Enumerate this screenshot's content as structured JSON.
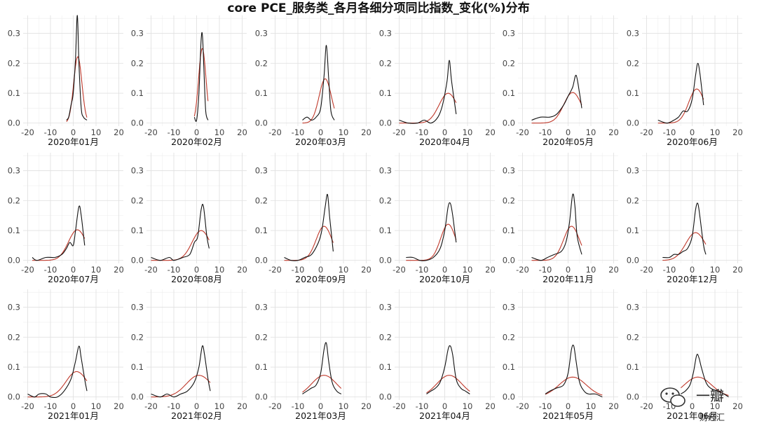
{
  "title": "core PCE_服务类_各月各细分项同比指数_变化(%)分布",
  "watermark": {
    "text": "一瓣",
    "subtext": "财经汇"
  },
  "chart_data": {
    "type": "line",
    "title": "core PCE_服务类_各月各细分项同比指数_变化(%)分布",
    "xlim": [
      -22,
      22
    ],
    "ylim": [
      -0.01,
      0.36
    ],
    "x_ticks": [
      -20,
      -10,
      0,
      10,
      20
    ],
    "y_ticks": [
      0.0,
      0.1,
      0.2,
      0.3
    ],
    "y_tick_labels": [
      "0.0",
      "0.1",
      "0.2",
      "0.3"
    ],
    "grid": true,
    "series_colors": {
      "density": "#111111",
      "normal": "#c0392b"
    },
    "panels": [
      {
        "label": "2020年01月",
        "black": [
          [
            -3,
            0.01
          ],
          [
            -2,
            0.02
          ],
          [
            -1,
            0.06
          ],
          [
            0,
            0.1
          ],
          [
            1,
            0.22
          ],
          [
            1.8,
            0.36
          ],
          [
            2.5,
            0.2
          ],
          [
            3.5,
            0.05
          ],
          [
            4.5,
            0.02
          ],
          [
            6,
            0.01
          ]
        ],
        "red": {
          "mean": 2.0,
          "sd": 1.8
        }
      },
      {
        "label": "2020年02月",
        "black": [
          [
            -1,
            0.02
          ],
          [
            0,
            0.01
          ],
          [
            1,
            0.1
          ],
          [
            2,
            0.28
          ],
          [
            2.6,
            0.29
          ],
          [
            3.2,
            0.18
          ],
          [
            4,
            0.04
          ],
          [
            5,
            0.01
          ]
        ],
        "red": {
          "mean": 2.5,
          "sd": 1.6
        }
      },
      {
        "label": "2020年03月",
        "black": [
          [
            -8,
            0.01
          ],
          [
            -6,
            0.02
          ],
          [
            -4,
            0.01
          ],
          [
            -2,
            0.02
          ],
          [
            0,
            0.05
          ],
          [
            1.5,
            0.16
          ],
          [
            2.5,
            0.26
          ],
          [
            3.5,
            0.15
          ],
          [
            4.5,
            0.04
          ],
          [
            6,
            0.01
          ]
        ],
        "red": {
          "mean": 2.0,
          "sd": 2.7
        }
      },
      {
        "label": "2020年04月",
        "black": [
          [
            -20,
            0.01
          ],
          [
            -16,
            0.0
          ],
          [
            -12,
            0.0
          ],
          [
            -9,
            0.01
          ],
          [
            -6,
            0.0
          ],
          [
            -3,
            0.02
          ],
          [
            -1,
            0.06
          ],
          [
            1,
            0.14
          ],
          [
            2,
            0.21
          ],
          [
            3,
            0.14
          ],
          [
            5,
            0.03
          ]
        ],
        "red": {
          "mean": 1.5,
          "sd": 4.0
        }
      },
      {
        "label": "2020年05月",
        "black": [
          [
            -16,
            0.01
          ],
          [
            -12,
            0.02
          ],
          [
            -8,
            0.02
          ],
          [
            -5,
            0.03
          ],
          [
            -2,
            0.06
          ],
          [
            0,
            0.09
          ],
          [
            2,
            0.12
          ],
          [
            3.5,
            0.16
          ],
          [
            5,
            0.1
          ],
          [
            6,
            0.05
          ]
        ],
        "red": {
          "mean": 2.0,
          "sd": 3.9
        }
      },
      {
        "label": "2020年06月",
        "black": [
          [
            -15,
            0.01
          ],
          [
            -11,
            0.0
          ],
          [
            -8,
            0.01
          ],
          [
            -6,
            0.02
          ],
          [
            -4,
            0.04
          ],
          [
            -2,
            0.04
          ],
          [
            0,
            0.08
          ],
          [
            1.5,
            0.16
          ],
          [
            2.5,
            0.2
          ],
          [
            3.5,
            0.16
          ],
          [
            5,
            0.06
          ]
        ],
        "red": {
          "mean": 2.0,
          "sd": 3.5
        }
      },
      {
        "label": "2020年07月",
        "black": [
          [
            -18,
            0.01
          ],
          [
            -16,
            0.0
          ],
          [
            -12,
            0.01
          ],
          [
            -8,
            0.01
          ],
          [
            -5,
            0.02
          ],
          [
            -3,
            0.04
          ],
          [
            -1.5,
            0.06
          ],
          [
            0,
            0.05
          ],
          [
            1,
            0.1
          ],
          [
            2.5,
            0.18
          ],
          [
            3.5,
            0.15
          ],
          [
            5,
            0.05
          ]
        ],
        "red": {
          "mean": 1.8,
          "sd": 3.9
        }
      },
      {
        "label": "2020年08月",
        "black": [
          [
            -20,
            0.01
          ],
          [
            -16,
            0.0
          ],
          [
            -12,
            0.01
          ],
          [
            -10,
            0.0
          ],
          [
            -6,
            0.01
          ],
          [
            -3,
            0.02
          ],
          [
            -1,
            0.06
          ],
          [
            0.5,
            0.08
          ],
          [
            2,
            0.17
          ],
          [
            3,
            0.18
          ],
          [
            4.5,
            0.08
          ],
          [
            5.5,
            0.04
          ]
        ],
        "red": {
          "mean": 2.0,
          "sd": 4.0
        }
      },
      {
        "label": "2020年09月",
        "black": [
          [
            -16,
            0.01
          ],
          [
            -13,
            0.0
          ],
          [
            -10,
            0.0
          ],
          [
            -7,
            0.01
          ],
          [
            -4,
            0.02
          ],
          [
            -1,
            0.06
          ],
          [
            0.5,
            0.1
          ],
          [
            2,
            0.18
          ],
          [
            3,
            0.22
          ],
          [
            4,
            0.14
          ],
          [
            5.5,
            0.03
          ]
        ],
        "red": {
          "mean": 1.5,
          "sd": 3.5
        }
      },
      {
        "label": "2020年10月",
        "black": [
          [
            -17,
            0.01
          ],
          [
            -14,
            0.01
          ],
          [
            -11,
            0.0
          ],
          [
            -8,
            0.0
          ],
          [
            -5,
            0.01
          ],
          [
            -2,
            0.04
          ],
          [
            0,
            0.1
          ],
          [
            1.5,
            0.18
          ],
          [
            2.5,
            0.19
          ],
          [
            3.5,
            0.15
          ],
          [
            5,
            0.06
          ]
        ],
        "red": {
          "mean": 1.5,
          "sd": 3.3
        }
      },
      {
        "label": "2020年11月",
        "black": [
          [
            -16,
            0.01
          ],
          [
            -12,
            0.0
          ],
          [
            -9,
            0.01
          ],
          [
            -6,
            0.02
          ],
          [
            -3,
            0.03
          ],
          [
            -1,
            0.06
          ],
          [
            0.5,
            0.12
          ],
          [
            2,
            0.22
          ],
          [
            3,
            0.18
          ],
          [
            4,
            0.08
          ],
          [
            6,
            0.02
          ]
        ],
        "red": {
          "mean": 1.5,
          "sd": 3.5
        }
      },
      {
        "label": "2020年12月",
        "black": [
          [
            -13,
            0.01
          ],
          [
            -10,
            0.01
          ],
          [
            -8,
            0.02
          ],
          [
            -6,
            0.02
          ],
          [
            -4,
            0.03
          ],
          [
            -2,
            0.04
          ],
          [
            0,
            0.08
          ],
          [
            1.5,
            0.17
          ],
          [
            2.5,
            0.19
          ],
          [
            3.5,
            0.14
          ],
          [
            5,
            0.05
          ],
          [
            6,
            0.02
          ]
        ],
        "red": {
          "mean": 1.5,
          "sd": 4.3
        }
      },
      {
        "label": "2021年01月",
        "black": [
          [
            -20,
            0.01
          ],
          [
            -17,
            0.0
          ],
          [
            -15,
            0.01
          ],
          [
            -12,
            0.01
          ],
          [
            -10,
            0.0
          ],
          [
            -7,
            0.0
          ],
          [
            -4,
            0.02
          ],
          [
            -1,
            0.06
          ],
          [
            1,
            0.12
          ],
          [
            2.5,
            0.17
          ],
          [
            3.5,
            0.13
          ],
          [
            5,
            0.06
          ],
          [
            6,
            0.02
          ]
        ],
        "red": {
          "mean": 1.5,
          "sd": 4.7
        }
      },
      {
        "label": "2021年02月",
        "black": [
          [
            -20,
            0.01
          ],
          [
            -16,
            0.0
          ],
          [
            -13,
            0.01
          ],
          [
            -10,
            0.0
          ],
          [
            -7,
            0.01
          ],
          [
            -4,
            0.02
          ],
          [
            -1,
            0.05
          ],
          [
            1,
            0.1
          ],
          [
            2.5,
            0.17
          ],
          [
            3.5,
            0.14
          ],
          [
            5,
            0.06
          ],
          [
            6,
            0.02
          ]
        ],
        "red": {
          "mean": 1.0,
          "sd": 5.5
        }
      },
      {
        "label": "2021年03月",
        "black": [
          [
            -8,
            0.01
          ],
          [
            -6,
            0.02
          ],
          [
            -4,
            0.03
          ],
          [
            -2,
            0.04
          ],
          [
            0,
            0.08
          ],
          [
            1.5,
            0.16
          ],
          [
            2.5,
            0.18
          ],
          [
            3.5,
            0.12
          ],
          [
            5,
            0.05
          ],
          [
            7,
            0.02
          ],
          [
            9,
            0.01
          ]
        ],
        "red": {
          "mean": 1.5,
          "sd": 5.5
        }
      },
      {
        "label": "2021年04月",
        "black": [
          [
            -8,
            0.01
          ],
          [
            -6,
            0.02
          ],
          [
            -4,
            0.03
          ],
          [
            -2,
            0.05
          ],
          [
            0,
            0.1
          ],
          [
            1.5,
            0.16
          ],
          [
            2.5,
            0.17
          ],
          [
            3.5,
            0.14
          ],
          [
            5,
            0.06
          ],
          [
            7,
            0.03
          ],
          [
            9,
            0.02
          ],
          [
            11,
            0.01
          ]
        ],
        "red": {
          "mean": 2.0,
          "sd": 5.5
        }
      },
      {
        "label": "2021年05月",
        "black": [
          [
            -10,
            0.01
          ],
          [
            -8,
            0.02
          ],
          [
            -5,
            0.03
          ],
          [
            -2,
            0.04
          ],
          [
            0,
            0.08
          ],
          [
            1.5,
            0.16
          ],
          [
            2.5,
            0.17
          ],
          [
            3.5,
            0.12
          ],
          [
            5,
            0.05
          ],
          [
            7,
            0.02
          ],
          [
            9,
            0.01
          ],
          [
            12,
            0.01
          ],
          [
            15,
            0.0
          ]
        ],
        "red": {
          "mean": 2.0,
          "sd": 6.0
        }
      },
      {
        "label": "2021年06月",
        "black": [
          [
            -5,
            0.01
          ],
          [
            -3,
            0.02
          ],
          [
            -1,
            0.04
          ],
          [
            0.5,
            0.08
          ],
          [
            2,
            0.14
          ],
          [
            3,
            0.13
          ],
          [
            4,
            0.1
          ],
          [
            6,
            0.05
          ],
          [
            8,
            0.03
          ],
          [
            11,
            0.02
          ],
          [
            14,
            0.01
          ],
          [
            16,
            0.0
          ]
        ],
        "red": {
          "mean": 2.5,
          "sd": 6.0
        }
      }
    ]
  }
}
